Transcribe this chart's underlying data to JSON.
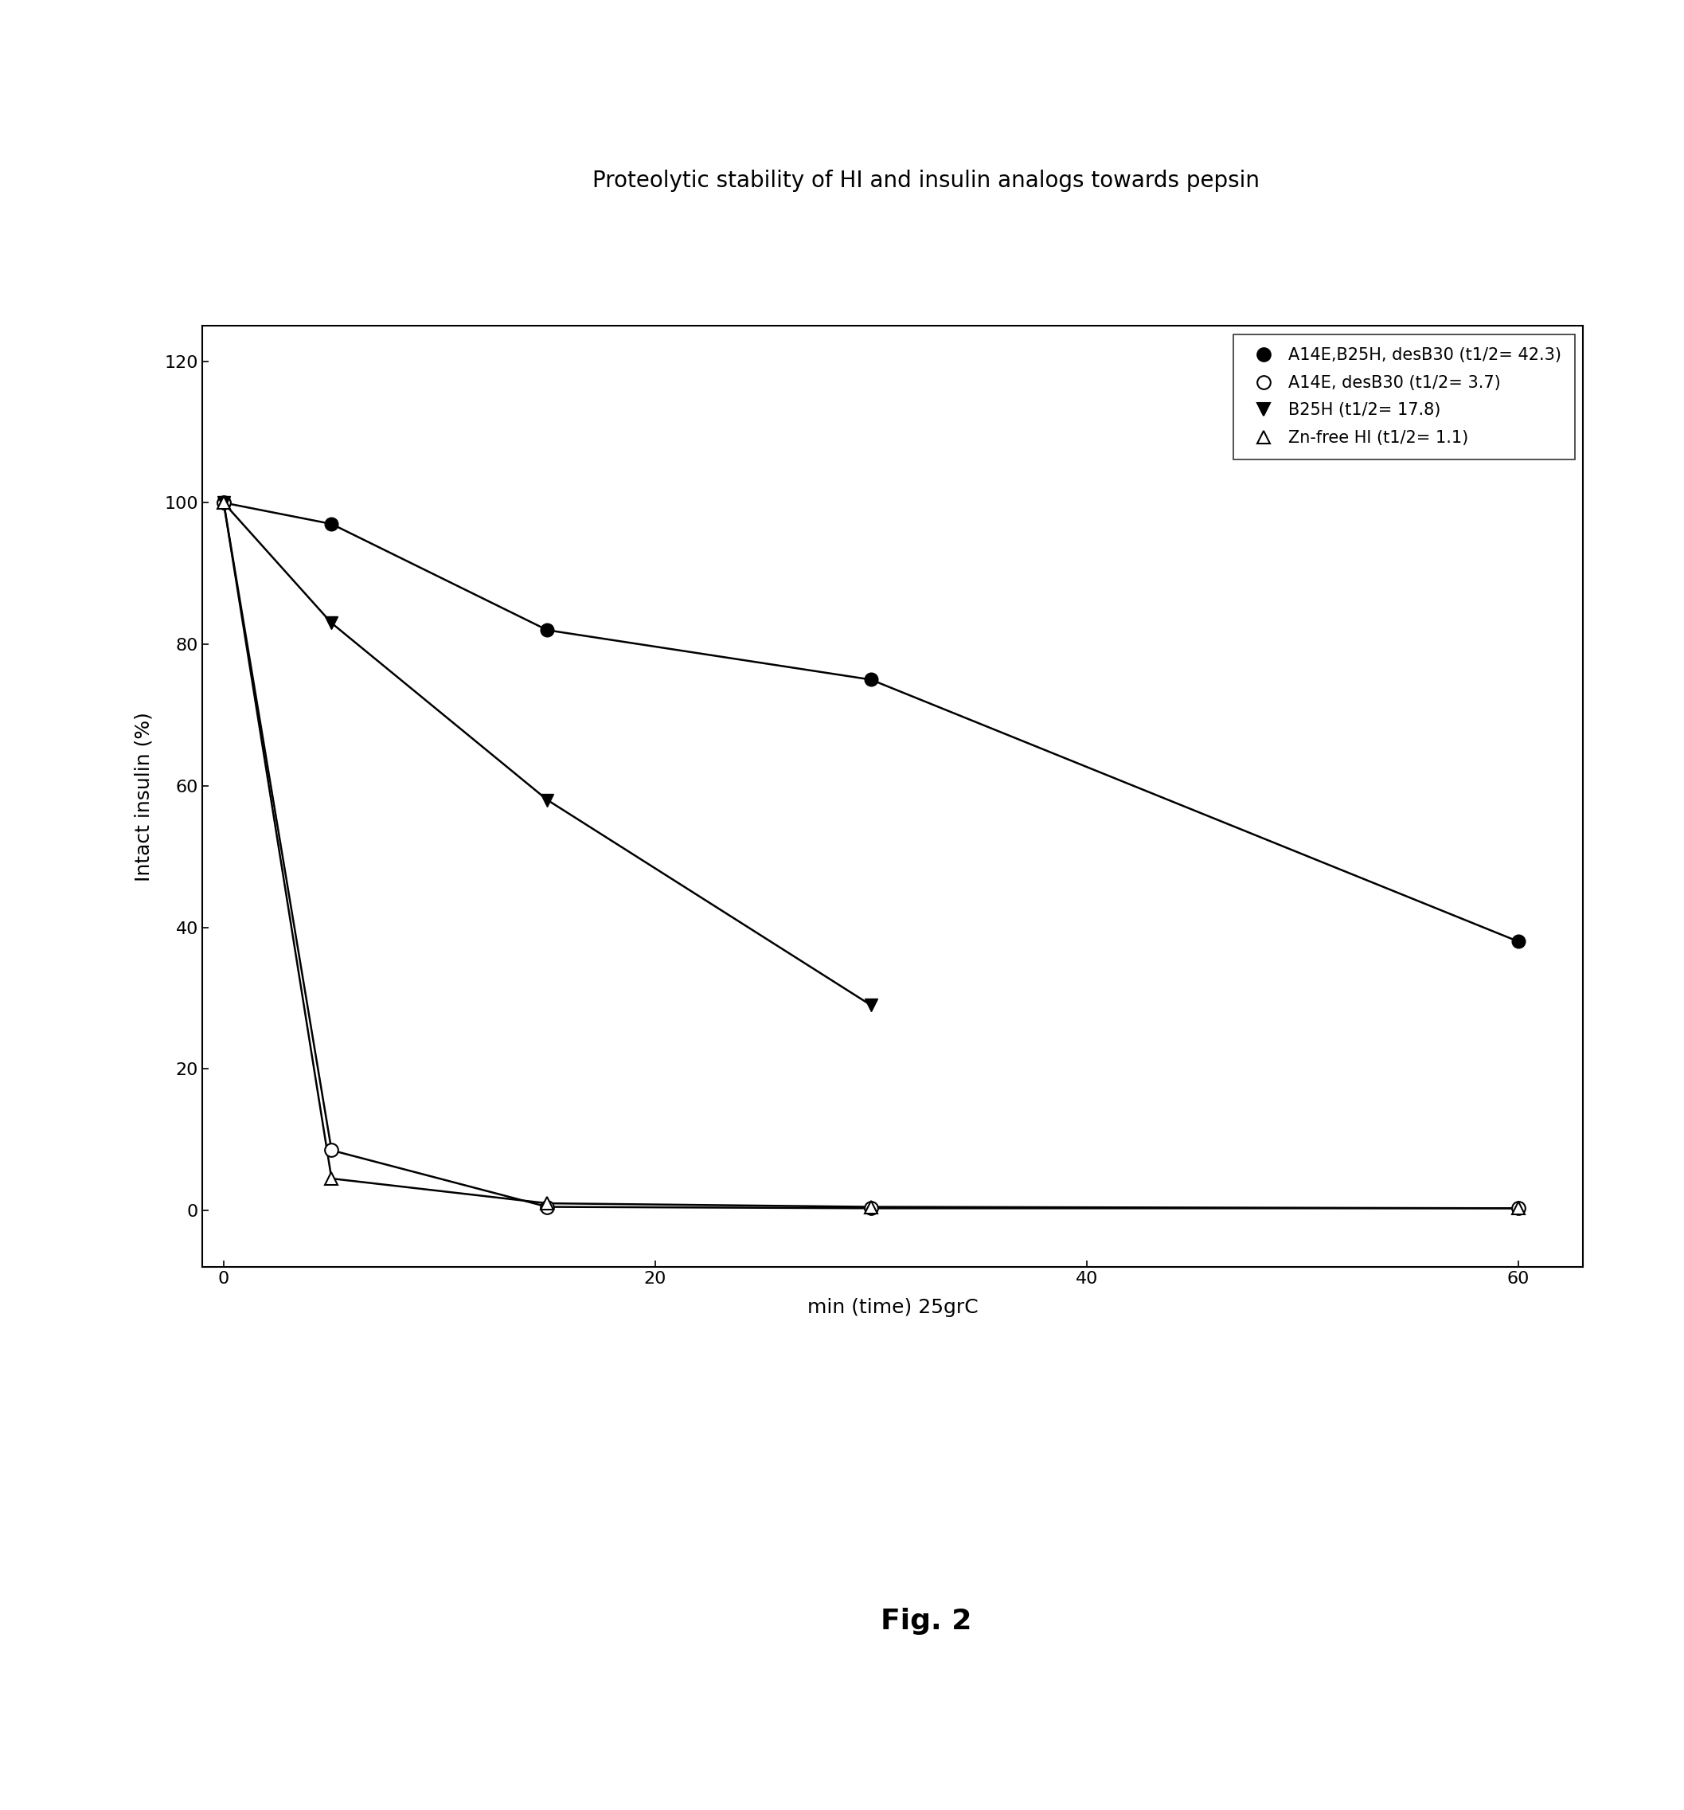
{
  "title": "Proteolytic stability of HI and insulin analogs towards pepsin",
  "xlabel": "min (time) 25grC",
  "ylabel": "Intact insulin (%)",
  "fig_label": "Fig. 2",
  "xlim": [
    -1,
    63
  ],
  "ylim": [
    -8,
    125
  ],
  "xticks": [
    0,
    20,
    40,
    60
  ],
  "yticks": [
    0,
    20,
    40,
    60,
    80,
    100,
    120
  ],
  "series": [
    {
      "label": "A14E,B25H, desB30 (t1/2= 42.3)",
      "x": [
        0,
        5,
        15,
        30,
        60
      ],
      "y": [
        100,
        97,
        82,
        75,
        38
      ],
      "marker": "o",
      "fillstyle": "full",
      "color": "black",
      "markersize": 12
    },
    {
      "label": "A14E, desB30 (t1/2= 3.7)",
      "x": [
        0,
        5,
        15,
        30,
        60
      ],
      "y": [
        100,
        8.5,
        0.5,
        0.3,
        0.3
      ],
      "marker": "o",
      "fillstyle": "none",
      "color": "black",
      "markersize": 12
    },
    {
      "label": "B25H (t1/2= 17.8)",
      "x": [
        0,
        5,
        15,
        30
      ],
      "y": [
        100,
        83,
        58,
        29
      ],
      "marker": "v",
      "fillstyle": "full",
      "color": "black",
      "markersize": 12
    },
    {
      "label": "Zn-free HI (t1/2= 1.1)",
      "x": [
        0,
        5,
        15,
        30,
        60
      ],
      "y": [
        100,
        4.5,
        1.0,
        0.5,
        0.3
      ],
      "marker": "^",
      "fillstyle": "none",
      "color": "black",
      "markersize": 12
    }
  ],
  "background_color": "white",
  "title_fontsize": 20,
  "label_fontsize": 18,
  "tick_fontsize": 16,
  "legend_fontsize": 15,
  "fig_label_fontsize": 26
}
